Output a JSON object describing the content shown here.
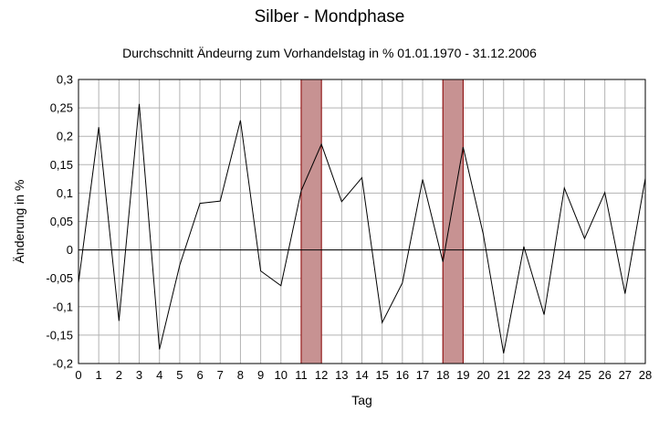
{
  "chart_data": {
    "type": "line",
    "title": "Silber - Mondphase",
    "subtitle": "Durchschnitt Ändeurng zum Vorhandelstag in % 01.01.1970 - 31.12.2006",
    "xlabel": "Tag",
    "ylabel": "Änderung in %",
    "xlim": [
      0,
      28
    ],
    "ylim": [
      -0.2,
      0.3
    ],
    "grid": true,
    "x": [
      0,
      1,
      2,
      3,
      4,
      5,
      6,
      7,
      8,
      9,
      10,
      11,
      12,
      13,
      14,
      15,
      16,
      17,
      18,
      19,
      20,
      21,
      22,
      23,
      24,
      25,
      26,
      27,
      28
    ],
    "x_tick_labels": [
      "0",
      "1",
      "2",
      "3",
      "4",
      "5",
      "6",
      "7",
      "8",
      "9",
      "10",
      "11",
      "12",
      "13",
      "14",
      "15",
      "16",
      "17",
      "18",
      "19",
      "20",
      "21",
      "22",
      "23",
      "24",
      "25",
      "26",
      "27",
      "28"
    ],
    "y_ticks": [
      0.3,
      0.25,
      0.2,
      0.15,
      0.1,
      0.05,
      0,
      -0.05,
      -0.1,
      -0.15,
      -0.2
    ],
    "y_tick_labels": [
      "0,3",
      "0,25",
      "0,2",
      "0,15",
      "0,1",
      "0,05",
      "0",
      "-0,05",
      "-0,1",
      "-0,15",
      "-0,2"
    ],
    "series": [
      {
        "values": [
          -0.058,
          0.216,
          -0.125,
          0.257,
          -0.175,
          -0.027,
          0.082,
          0.086,
          0.228,
          -0.037,
          -0.063,
          0.104,
          0.186,
          0.085,
          0.127,
          -0.128,
          -0.058,
          0.124,
          -0.021,
          0.181,
          0.027,
          -0.182,
          0.006,
          -0.114,
          0.109,
          0.02,
          0.101,
          -0.077,
          0.126
        ]
      }
    ],
    "highlight_bands": [
      {
        "from": 11,
        "to": 12,
        "color": "#c79292",
        "border": "#8b0000"
      },
      {
        "from": 18,
        "to": 19,
        "color": "#c79292",
        "border": "#8b0000"
      }
    ],
    "line_color": "#000000",
    "grid_color": "#b3b3b3"
  }
}
